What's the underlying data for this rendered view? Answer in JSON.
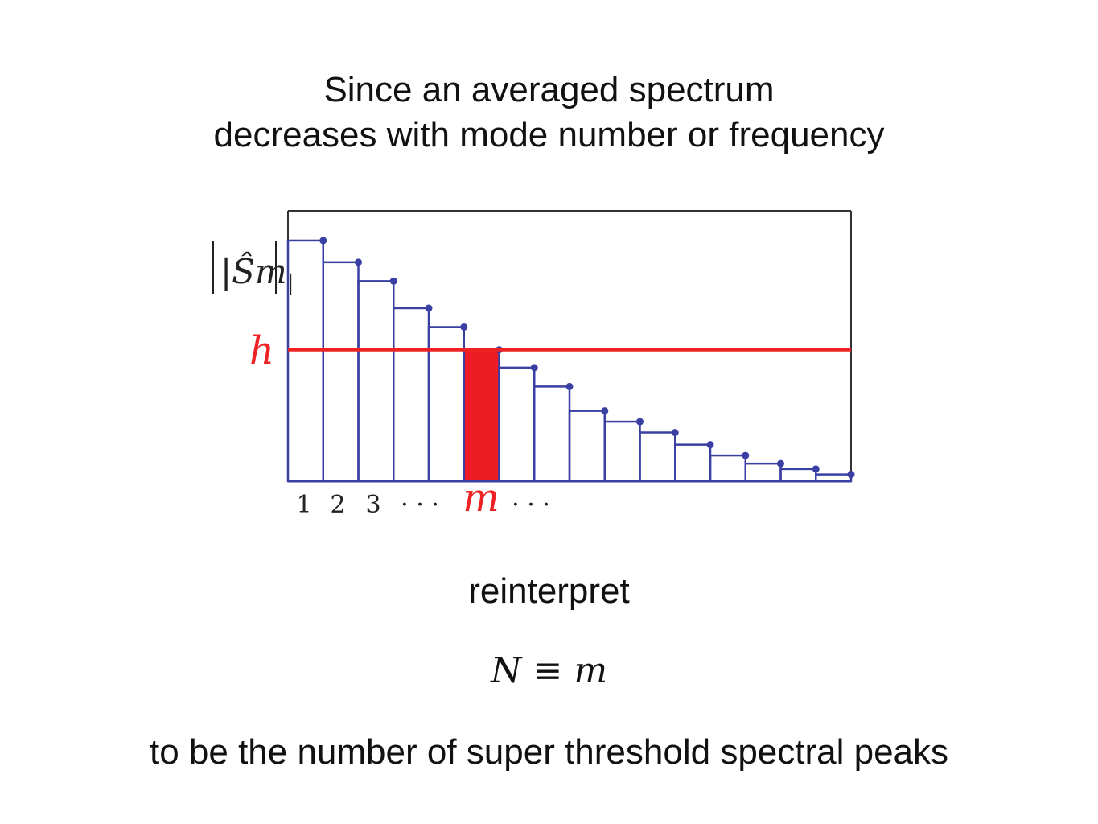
{
  "text": {
    "title_line1": "Since  an averaged spectrum",
    "title_line2": "decreases with mode number or frequency",
    "reinterpret": "reinterpret",
    "equation_lhs": "N",
    "equation_op": "≡",
    "equation_rhs": "m",
    "bottom": "to be the number of super threshold spectral peaks"
  },
  "chart_data": {
    "type": "bar",
    "ylabel": "|Ŝm|",
    "threshold_label": "h",
    "threshold_value": 0.486,
    "highlight_index": 6,
    "x_tick_labels": [
      "1",
      "2",
      "3",
      "· · ·",
      "m",
      "· · ·"
    ],
    "values": [
      0.89,
      0.81,
      0.74,
      0.64,
      0.57,
      0.486,
      0.42,
      0.35,
      0.26,
      0.22,
      0.18,
      0.135,
      0.095,
      0.065,
      0.045,
      0.025
    ],
    "ylim": [
      0,
      1
    ],
    "colors": {
      "bars": "#3a3fa3",
      "threshold": "#ee2222",
      "highlight": "#ee1c24"
    }
  }
}
